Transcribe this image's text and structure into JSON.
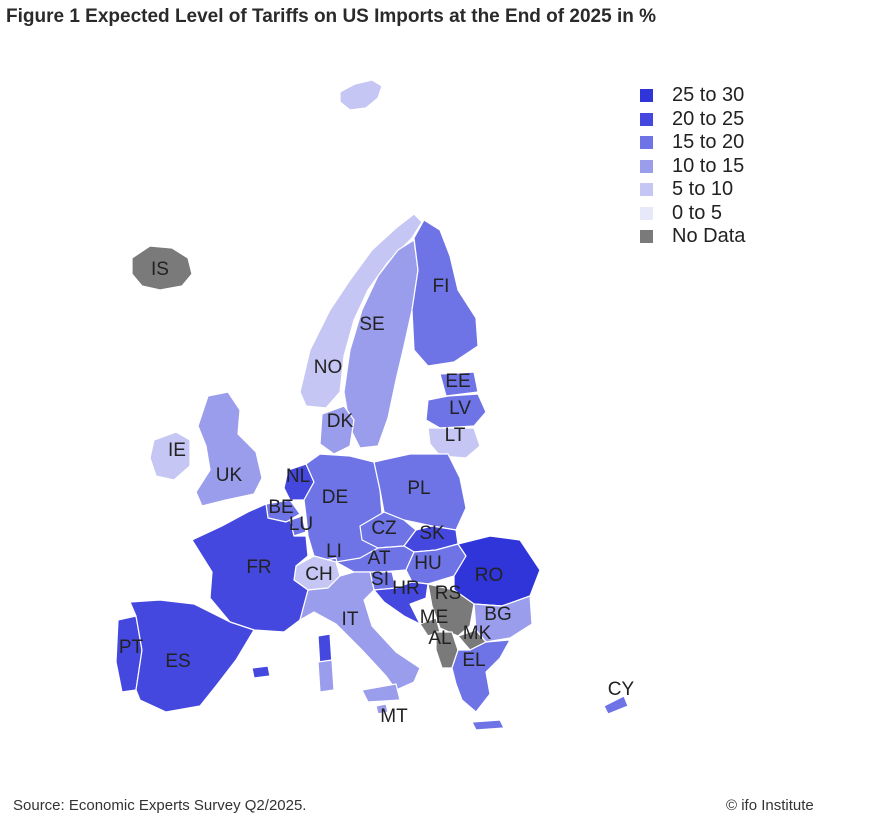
{
  "title": "Figure 1 Expected Level of Tariffs on US Imports at the End of 2025 in %",
  "legend": [
    {
      "label": "25 to 30",
      "color": "#2f35d8"
    },
    {
      "label": "20 to 25",
      "color": "#4548df"
    },
    {
      "label": "15 to 20",
      "color": "#6e73e6"
    },
    {
      "label": "10 to 15",
      "color": "#9a9cec"
    },
    {
      "label": "5 to 10",
      "color": "#c5c6f3"
    },
    {
      "label": "0 to 5",
      "color": "#e8e8fb"
    },
    {
      "label": "No Data",
      "color": "#7a7a7a"
    }
  ],
  "countries": [
    {
      "code": "IS",
      "bin": "No Data"
    },
    {
      "code": "NO",
      "bin": "5 to 10"
    },
    {
      "code": "SE",
      "bin": "10 to 15"
    },
    {
      "code": "FI",
      "bin": "15 to 20"
    },
    {
      "code": "EE",
      "bin": "15 to 20"
    },
    {
      "code": "LV",
      "bin": "15 to 20"
    },
    {
      "code": "LT",
      "bin": "5 to 10"
    },
    {
      "code": "DK",
      "bin": "10 to 15"
    },
    {
      "code": "IE",
      "bin": "5 to 10"
    },
    {
      "code": "UK",
      "bin": "10 to 15"
    },
    {
      "code": "NL",
      "bin": "20 to 25"
    },
    {
      "code": "BE",
      "bin": "15 to 20"
    },
    {
      "code": "LU",
      "bin": "15 to 20"
    },
    {
      "code": "DE",
      "bin": "15 to 20"
    },
    {
      "code": "PL",
      "bin": "15 to 20"
    },
    {
      "code": "CZ",
      "bin": "15 to 20"
    },
    {
      "code": "SK",
      "bin": "20 to 25"
    },
    {
      "code": "FR",
      "bin": "20 to 25"
    },
    {
      "code": "LI",
      "bin": "15 to 20"
    },
    {
      "code": "AT",
      "bin": "15 to 20"
    },
    {
      "code": "HU",
      "bin": "15 to 20"
    },
    {
      "code": "RO",
      "bin": "25 to 30"
    },
    {
      "code": "CH",
      "bin": "5 to 10"
    },
    {
      "code": "SI",
      "bin": "15 to 20"
    },
    {
      "code": "HR",
      "bin": "20 to 25"
    },
    {
      "code": "RS",
      "bin": "No Data"
    },
    {
      "code": "BG",
      "bin": "10 to 15"
    },
    {
      "code": "IT",
      "bin": "10 to 15"
    },
    {
      "code": "ME",
      "bin": "No Data"
    },
    {
      "code": "MK",
      "bin": "No Data"
    },
    {
      "code": "AL",
      "bin": "No Data"
    },
    {
      "code": "EL",
      "bin": "15 to 20"
    },
    {
      "code": "PT",
      "bin": "20 to 25"
    },
    {
      "code": "ES",
      "bin": "20 to 25"
    },
    {
      "code": "CY",
      "bin": "15 to 20"
    },
    {
      "code": "MT",
      "bin": "10 to 15"
    }
  ],
  "footer": {
    "source": "Source: Economic Experts Survey Q2/2025.",
    "credit": "© ifo Institute"
  }
}
